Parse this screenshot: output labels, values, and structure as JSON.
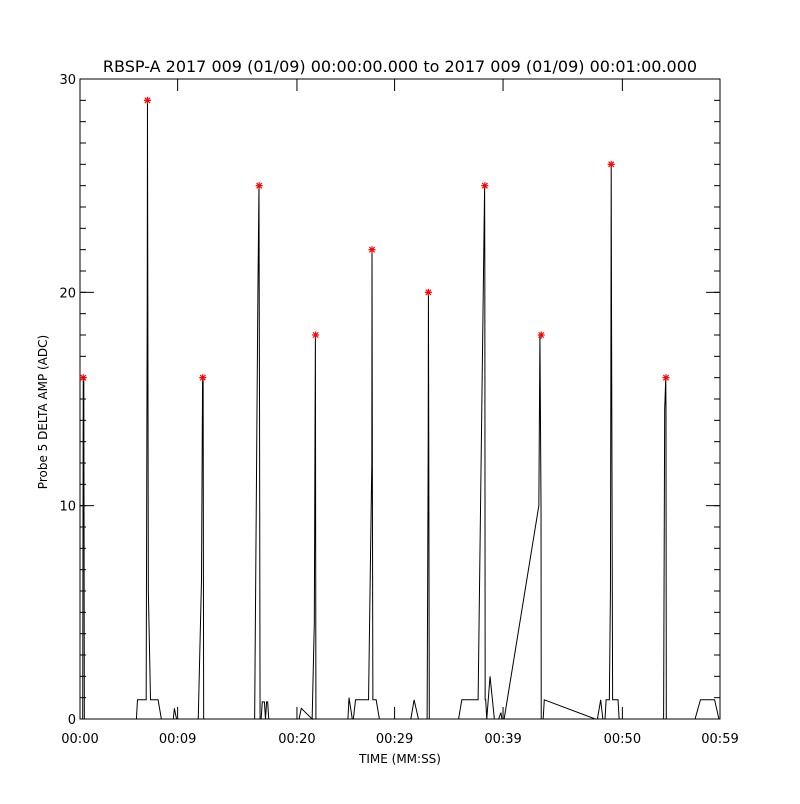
{
  "chart_data": {
    "type": "line",
    "title": "RBSP-A 2017 009 (01/09) 00:00:00.000 to 2017 009 (01/09) 00:01:00.000",
    "xlabel": "TIME (MM:SS)",
    "ylabel": "Probe 5 DELTA AMP (ADC)",
    "xlim": [
      0,
      59
    ],
    "ylim": [
      0,
      30
    ],
    "x_ticks": [
      0,
      9,
      20,
      29,
      39,
      50,
      59
    ],
    "x_tick_labels": [
      "00:00",
      "00:09",
      "00:20",
      "00:29",
      "00:39",
      "00:50",
      "00:59"
    ],
    "y_ticks": [
      0,
      10,
      20,
      30
    ],
    "y_tick_labels": [
      "0",
      "10",
      "20",
      "30"
    ],
    "y_minor_step": 1,
    "grid": false,
    "colors": {
      "line": "#000000",
      "peak_marker": "#ff0000"
    },
    "series": [
      {
        "x": [
          0.0,
          0.25,
          0.3,
          0.32,
          0.35,
          0.4,
          0.5,
          0.55,
          0.6,
          0.7,
          5.2,
          5.3,
          5.5,
          5.8,
          6.1,
          6.2,
          6.22,
          6.25,
          6.3,
          6.5,
          6.8,
          7.2,
          7.5,
          8.6,
          8.7,
          8.9,
          9.5,
          10.9,
          11.2,
          11.3,
          11.32,
          11.35,
          11.4,
          11.5,
          11.8,
          15.6,
          16.1,
          16.4,
          16.5,
          16.52,
          16.55,
          16.6,
          16.7,
          16.8,
          17.0,
          17.1,
          17.2,
          17.3,
          17.4,
          17.6,
          20.2,
          20.4,
          21.4,
          21.6,
          21.7,
          21.72,
          21.75,
          21.8,
          21.9,
          24.7,
          24.8,
          25.1,
          25.2,
          25.4,
          26.2,
          26.6,
          26.9,
          26.92,
          26.95,
          27.0,
          27.1,
          27.3,
          27.6,
          30.5,
          30.8,
          31.2,
          32.0,
          32.1,
          32.12,
          32.15,
          32.2,
          32.3,
          34.9,
          35.2,
          36.4,
          36.7,
          37.2,
          37.3,
          37.32,
          37.35,
          37.4,
          37.5,
          37.8,
          38.2,
          38.5,
          38.6,
          38.8,
          38.9,
          39.1,
          42.3,
          42.4,
          42.5,
          42.52,
          42.55,
          42.6,
          42.7,
          42.8,
          47.5,
          47.7,
          48.0,
          48.2,
          48.4,
          48.5,
          48.6,
          48.8,
          48.9,
          48.95,
          48.97,
          49.0,
          49.1,
          49.2,
          49.6,
          49.7,
          50.0,
          50.2,
          52.6,
          52.9,
          53.2,
          53.8,
          53.9,
          54.0,
          54.02,
          54.05,
          54.1,
          54.2,
          56.7,
          57.2,
          58.5,
          58.9
        ],
        "y": [
          0,
          0,
          16,
          13.5,
          16,
          0,
          0,
          0,
          0,
          0,
          0,
          0.9,
          0.9,
          0.9,
          0.9,
          20,
          29,
          20,
          6,
          0.9,
          0.9,
          0.9,
          0,
          0,
          0.5,
          0,
          0,
          0,
          6.5,
          16,
          14.5,
          16,
          0,
          0,
          0,
          0,
          0,
          20,
          25,
          20,
          14.5,
          0,
          0,
          0.8,
          0.8,
          0,
          0.8,
          0.8,
          0,
          0,
          0,
          0.5,
          0,
          4.5,
          18,
          10,
          0,
          0,
          0,
          0,
          1.0,
          0,
          0,
          0.9,
          0.9,
          0.9,
          12,
          22,
          12,
          0.9,
          0.9,
          0.9,
          0,
          0,
          0.9,
          0,
          0,
          13,
          20,
          13,
          0,
          0,
          0,
          0.9,
          0.9,
          0.9,
          21,
          25,
          21,
          0.9,
          0.9,
          0,
          2,
          0,
          0,
          0,
          0.3,
          0,
          0,
          10,
          18,
          10,
          0,
          0,
          0,
          0,
          0.9,
          0,
          0,
          0.9,
          0,
          0,
          0.9,
          0.9,
          0.9,
          6,
          19,
          26,
          19,
          0.9,
          0.9,
          0.9,
          0,
          0,
          0,
          0,
          0,
          0,
          0,
          14.5,
          16,
          14.5,
          0,
          0,
          0,
          0,
          0.9,
          0.9,
          0
        ]
      }
    ],
    "peaks": {
      "x": [
        0.3,
        6.22,
        11.32,
        16.52,
        21.72,
        26.92,
        32.12,
        37.32,
        42.52,
        48.97,
        54.02
      ],
      "y": [
        16,
        29,
        16,
        25,
        18,
        22,
        20,
        25,
        18,
        26,
        16
      ]
    }
  }
}
